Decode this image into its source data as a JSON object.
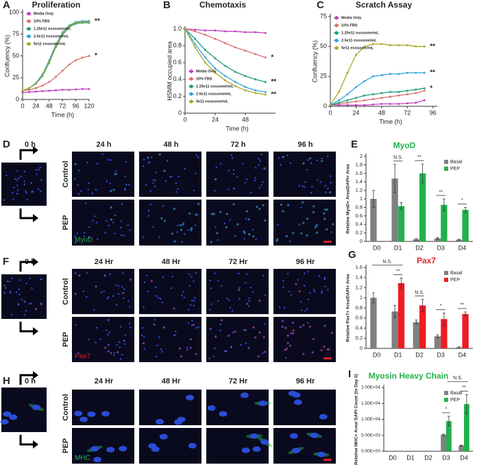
{
  "chart_data": [
    {
      "type": "line",
      "panel": "A",
      "title": "Proliferation",
      "x_label": "Time (h)",
      "y_label": "Confluency (%)",
      "x": [
        0,
        12,
        24,
        36,
        48,
        60,
        72,
        84,
        96,
        108,
        120
      ],
      "xlim": [
        0,
        120
      ],
      "xticks": [
        0,
        24,
        48,
        72,
        96,
        120
      ],
      "ylim": [
        0,
        100
      ],
      "yticks": [
        0,
        25,
        50,
        75,
        100
      ],
      "legend": "upper left",
      "series": [
        {
          "name": "Media Only",
          "color": "#c23fc2",
          "values": [
            8,
            8.5,
            9,
            9.5,
            10,
            10.5,
            11,
            11,
            11.5,
            12,
            12
          ]
        },
        {
          "name": "10% FBS",
          "color": "#d9706a",
          "values": [
            10,
            11,
            13,
            16,
            20,
            26,
            33,
            40,
            45,
            48,
            50
          ],
          "annotation": "*"
        },
        {
          "name": "1.25e11 exosome/mL",
          "color": "#1f9e7a",
          "values": [
            10,
            13,
            18,
            27,
            42,
            60,
            74,
            83,
            87,
            88,
            88
          ]
        },
        {
          "name": "2.5e11 exosome/mL",
          "color": "#2fa3de",
          "values": [
            10,
            13,
            19,
            29,
            45,
            63,
            77,
            85,
            89,
            90,
            90
          ],
          "annotation": "**"
        },
        {
          "name": "5e11 exosome/mL",
          "color": "#a9a724",
          "values": [
            10,
            13,
            18,
            28,
            43,
            61,
            75,
            84,
            88,
            89,
            89
          ]
        }
      ]
    },
    {
      "type": "line",
      "panel": "B",
      "title": "Chemotaxis",
      "x_label": "Time (h)",
      "y_label": "HSMM occupied area",
      "x": [
        0,
        8,
        16,
        24,
        32,
        40,
        48,
        56,
        64
      ],
      "xlim": [
        0,
        72
      ],
      "xticks": [
        0,
        24,
        48
      ],
      "ylim": [
        0,
        1
      ],
      "yticks": [
        0,
        0.2,
        0.4,
        0.6,
        0.8,
        {
          "value": 1,
          "label": "1.0"
        }
      ],
      "legend": "lower left",
      "series": [
        {
          "name": "Media Only",
          "color": "#c23fc2",
          "values": [
            1,
            0.99,
            0.98,
            0.98,
            0.97,
            0.97,
            0.96,
            0.96,
            0.95
          ]
        },
        {
          "name": "10% FBS",
          "color": "#d9706a",
          "values": [
            1,
            0.97,
            0.93,
            0.88,
            0.83,
            0.78,
            0.74,
            0.7,
            0.66
          ],
          "annotation": "*"
        },
        {
          "name": "1.25e11 exosome/mL",
          "color": "#1f9e7a",
          "values": [
            1,
            0.88,
            0.75,
            0.65,
            0.56,
            0.49,
            0.44,
            0.4,
            0.37
          ],
          "annotation": "**"
        },
        {
          "name": "2.5e11 exosome/mL",
          "color": "#2fa3de",
          "values": [
            1,
            0.82,
            0.66,
            0.53,
            0.44,
            0.37,
            0.31,
            0.27,
            0.25
          ]
        },
        {
          "name": "5e11 exosome/mL",
          "color": "#a9a724",
          "values": [
            1,
            0.78,
            0.6,
            0.48,
            0.39,
            0.32,
            0.27,
            0.24,
            0.22
          ],
          "annotation": "**"
        }
      ]
    },
    {
      "type": "line",
      "panel": "C",
      "title": "Scratch Assay",
      "x_label": "Time (h)",
      "y_label": "Confluency (%)",
      "x": [
        0,
        8,
        16,
        24,
        32,
        40,
        48,
        56,
        64,
        72,
        80,
        88
      ],
      "xlim": [
        0,
        100
      ],
      "xticks": [
        0,
        24,
        48,
        72,
        96
      ],
      "ylim": [
        0,
        75
      ],
      "yticks": [
        0,
        25,
        50,
        75
      ],
      "legend": "upper left",
      "series": [
        {
          "name": "Media Only",
          "color": "#c23fc2",
          "values": [
            1,
            1,
            1,
            1,
            1,
            1.5,
            2,
            2,
            2,
            2.5,
            3,
            5
          ]
        },
        {
          "name": "10% FBS",
          "color": "#d9706a",
          "values": [
            1,
            2,
            3,
            4,
            5,
            6,
            7,
            8,
            9,
            10,
            11,
            13
          ]
        },
        {
          "name": "1.25e11 exosome/mL",
          "color": "#1f9e7a",
          "values": [
            1,
            3,
            5,
            7,
            9,
            10,
            11,
            12,
            12,
            13,
            14,
            15
          ],
          "annotation": "*"
        },
        {
          "name": "2.5e11 exosome/mL",
          "color": "#2fa3de",
          "values": [
            1,
            5,
            10,
            16,
            21,
            25,
            26,
            27,
            27,
            28,
            28,
            28
          ],
          "annotation": "**"
        },
        {
          "name": "5e11 exosome/mL",
          "color": "#a9a724",
          "values": [
            1,
            12,
            28,
            43,
            50,
            52,
            52,
            51,
            51,
            51,
            50,
            50
          ],
          "annotation": "**"
        }
      ]
    },
    {
      "type": "bar",
      "panel": "E",
      "title": "MyoD",
      "title_color": "#22b14c",
      "y_label": "Relative MyoD+ Area/DAPI+ Area",
      "categories": [
        "D0",
        "D1",
        "D2",
        "D3",
        "D4"
      ],
      "ylim": [
        0,
        2
      ],
      "yticks": [
        0,
        0.2,
        0.4,
        0.6,
        0.8,
        1,
        1.2,
        1.4,
        1.6,
        1.8,
        2
      ],
      "legend": "upper right",
      "series": [
        {
          "name": "Basal",
          "color": "#808080",
          "values": [
            1,
            1.48,
            0.05,
            0.07,
            0.04
          ],
          "errors": [
            0.2,
            0.33,
            0.02,
            0.02,
            0.01
          ]
        },
        {
          "name": "PEP",
          "color": "#22b14c",
          "values": [
            null,
            0.83,
            1.6,
            0.86,
            0.74
          ],
          "errors": [
            null,
            0.08,
            0.22,
            0.14,
            0.06
          ]
        }
      ],
      "annotations": [
        {
          "text": "N.S.",
          "span": [
            "D1"
          ]
        },
        {
          "text": "**",
          "span": [
            "D2"
          ]
        },
        {
          "text": "**",
          "span": [
            "D3"
          ]
        },
        {
          "text": "*",
          "span": [
            "D4"
          ]
        }
      ]
    },
    {
      "type": "bar",
      "panel": "G",
      "title": "Pax7",
      "title_color": "#ee1c24",
      "y_label": "Relative Pax7+ Area/DAPI+ Area",
      "categories": [
        "D0",
        "D1",
        "D2",
        "D3",
        "D4"
      ],
      "ylim": [
        0,
        1.6
      ],
      "yticks": [
        0,
        0.2,
        0.4,
        0.6,
        0.8,
        1,
        1.2,
        1.4,
        1.6
      ],
      "legend": "upper right",
      "series": [
        {
          "name": "Basal",
          "color": "#808080",
          "values": [
            1,
            0.73,
            0.52,
            0.24,
            0.02
          ],
          "errors": [
            0.1,
            0.12,
            0.04,
            0.03,
            0.01
          ]
        },
        {
          "name": "PEP",
          "color": "#ee1c24",
          "values": [
            null,
            1.29,
            0.85,
            0.58,
            0.68
          ],
          "errors": [
            null,
            0.1,
            0.12,
            0.12,
            0.04
          ]
        }
      ],
      "annotations": [
        {
          "text": "**",
          "span": [
            "D1"
          ]
        },
        {
          "text": "N.S.",
          "span": [
            "D2"
          ]
        },
        {
          "text": "*",
          "span": [
            "D3"
          ]
        },
        {
          "text": "**",
          "span": [
            "D4"
          ]
        },
        {
          "text": "N.S.",
          "span": [
            "D0",
            "D1"
          ]
        }
      ]
    },
    {
      "type": "bar",
      "panel": "I",
      "title": "Myosin Heavy Chain",
      "title_color": "#22b14c",
      "y_label": "Relative MHC+ Area/ DAPI Count (to Day 0)",
      "categories": [
        "D0",
        "D1",
        "D2",
        "D3",
        "D4"
      ],
      "ylim": [
        0,
        20000
      ],
      "yticks": [
        {
          "value": 0,
          "label": "0.00E+00"
        },
        {
          "value": 5000,
          "label": "5.00E+03"
        },
        {
          "value": 10000,
          "label": "1.00E+04"
        },
        {
          "value": 15000,
          "label": "1.50E+04"
        },
        {
          "value": 20000,
          "label": "2.00E+04"
        }
      ],
      "legend": "upper right",
      "series": [
        {
          "name": "Basal",
          "color": "#808080",
          "values": [
            null,
            null,
            null,
            5200,
            1800
          ],
          "errors": [
            null,
            null,
            null,
            200,
            100
          ]
        },
        {
          "name": "PEP",
          "color": "#22b14c",
          "values": [
            null,
            null,
            null,
            9500,
            14800
          ],
          "errors": [
            null,
            null,
            null,
            1500,
            3000
          ]
        }
      ],
      "annotations": [
        {
          "text": "*",
          "span": [
            "D3"
          ]
        },
        {
          "text": "**",
          "span": [
            "D4"
          ]
        },
        {
          "text": "N.S.",
          "span": [
            "D3",
            "D4"
          ]
        }
      ]
    }
  ],
  "image_panels": [
    {
      "panel": "D",
      "time_zero": "0 h",
      "times": [
        "24 h",
        "48 h",
        "72 h",
        "96 h"
      ],
      "rows": [
        "Control",
        "PEP"
      ],
      "stain": "MyoD",
      "stain_color": "#22b14c"
    },
    {
      "panel": "F",
      "time_zero": "0 h",
      "times": [
        "24 Hr",
        "48 Hr",
        "72 Hr",
        "96 Hr"
      ],
      "rows": [
        "Control",
        "PEP"
      ],
      "stain": "Pax7",
      "stain_color": "#ee1c24"
    },
    {
      "panel": "H",
      "time_zero": "0 h",
      "times": [
        "24 Hr",
        "48 Hr",
        "72 Hr",
        "96 Hr"
      ],
      "rows": [
        "Control",
        "PEP"
      ],
      "stain": "MHC",
      "stain_color": "#22b14c"
    }
  ]
}
